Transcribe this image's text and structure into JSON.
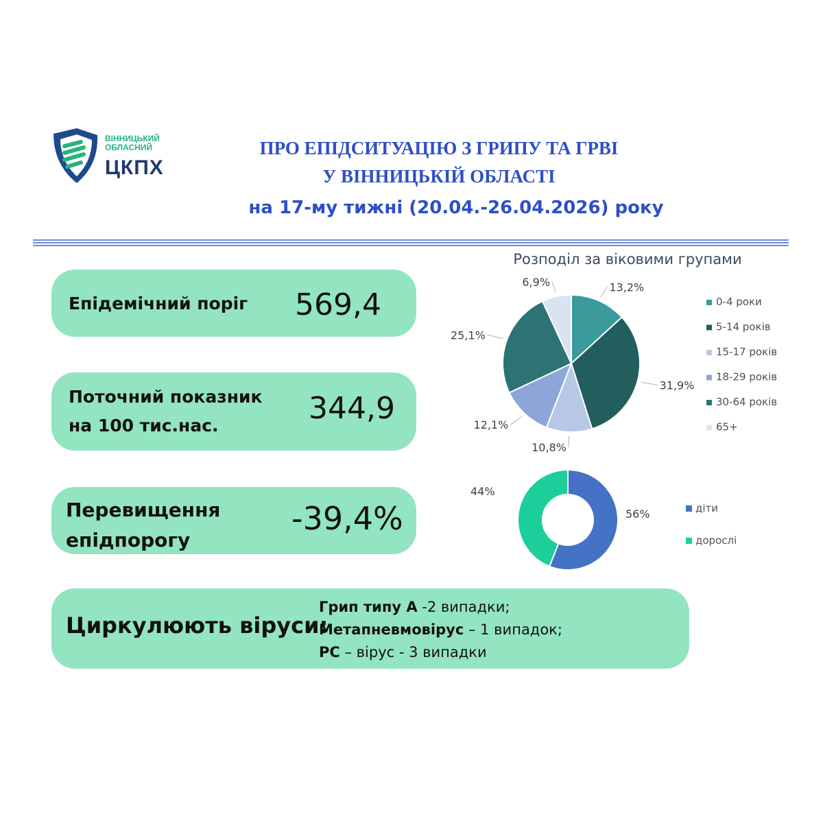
{
  "logo": {
    "line1": "ВІННИЦЬКИЙ",
    "line2": "ОБЛАСНИЙ",
    "name": "ЦКПХ"
  },
  "header": {
    "title_line1": "ПРО ЕПІДСИТУАЦІЮ З ГРИПУ ТА ГРВІ",
    "title_line2": "У ВІННИЦЬКІЙ ОБЛАСТІ",
    "subtitle": "на 17-му тижні (20.04.-26.04.2026) року"
  },
  "cards": {
    "threshold": {
      "label": "Епідемічний поріг",
      "value": "569,4"
    },
    "current": {
      "label_line1": "Поточний показник",
      "label_line2": "на 100 тис.нас.",
      "value": "344,9"
    },
    "excess": {
      "label_line1": "Перевищення",
      "label_line2": "епідпорогу",
      "value": "-39,4%"
    },
    "viruses": {
      "label": "Циркулюють віруси:",
      "line1_bold": "Грип типу А",
      "line1_rest": " -2 випадки;",
      "line2_bold": "Метапневмовірус",
      "line2_rest": " – 1 випадок;",
      "line3_bold": "РС",
      "line3_rest": " – вірус - 3 випадки"
    }
  },
  "colors": {
    "card_bg": "#93e4c1",
    "title": "#2e4fc4"
  },
  "chart_data": [
    {
      "type": "pie",
      "title": "Розподіл за віковими групами",
      "categories": [
        "0-4 роки",
        "5-14 років",
        "15-17 років",
        "18-29 років",
        "30-64 років",
        "65+"
      ],
      "values": [
        13.2,
        31.9,
        10.8,
        12.1,
        25.1,
        6.9
      ],
      "labels": [
        "13,2%",
        "31,9%",
        "10,8%",
        "12,1%",
        "25,1%",
        "6,9%"
      ],
      "colors": [
        "#3a9a9c",
        "#235e5f",
        "#b7c7e6",
        "#8da6d9",
        "#2d7373",
        "#dbe3f3"
      ],
      "legend": "right"
    },
    {
      "type": "pie",
      "subtype": "donut",
      "categories": [
        "діти",
        "дорослі"
      ],
      "values": [
        56,
        44
      ],
      "labels": [
        "56%",
        "44%"
      ],
      "colors": [
        "#4472c4",
        "#1ccf9a"
      ],
      "legend": "right"
    }
  ]
}
